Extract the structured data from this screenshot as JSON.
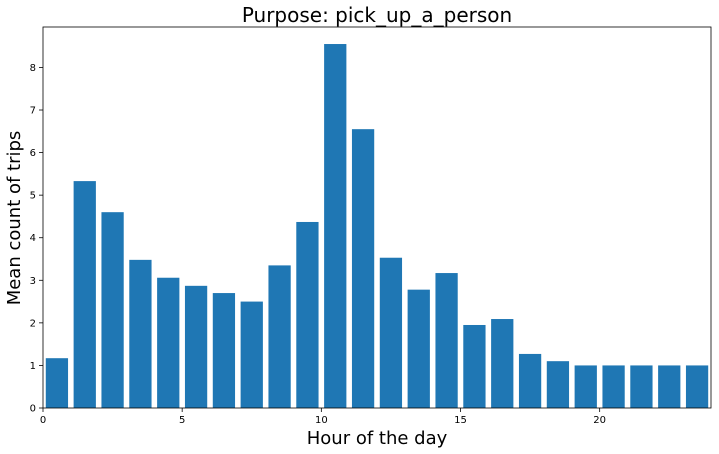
{
  "chart_data": {
    "type": "bar",
    "title": "Purpose: pick_up_a_person",
    "xlabel": "Hour of the day",
    "ylabel": "Mean count of trips",
    "x": [
      0,
      1,
      2,
      3,
      4,
      5,
      6,
      7,
      8,
      9,
      10,
      11,
      12,
      13,
      14,
      15,
      16,
      17,
      18,
      19,
      20,
      21,
      22,
      23
    ],
    "values": [
      1.17,
      5.33,
      4.6,
      3.48,
      3.06,
      2.87,
      2.7,
      2.5,
      3.35,
      4.37,
      8.55,
      6.55,
      3.53,
      2.78,
      3.17,
      1.95,
      2.09,
      1.27,
      1.1,
      1.0,
      1.0,
      1.0,
      1.0,
      1.0
    ],
    "xlim": [
      0,
      24
    ],
    "ylim": [
      0,
      8.95
    ],
    "xticks": [
      0,
      5,
      10,
      15,
      20
    ],
    "yticks": [
      0,
      1,
      2,
      3,
      4,
      5,
      6,
      7,
      8
    ],
    "bar_color": "#1f77b4",
    "grid": false
  }
}
